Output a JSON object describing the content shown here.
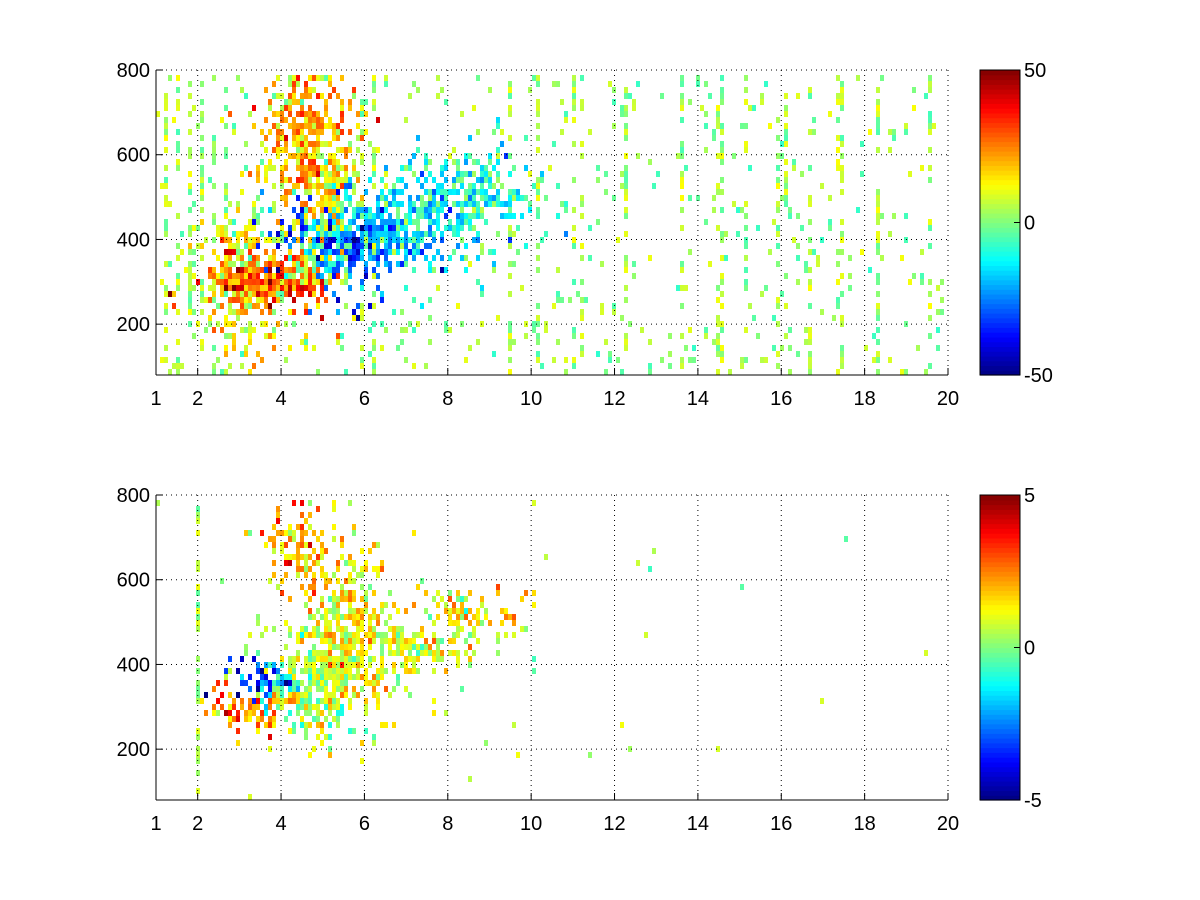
{
  "figure": {
    "background": "#ffffff"
  },
  "colormap": "jet",
  "chart_data": [
    {
      "type": "heatmap",
      "title": "",
      "xlabel": "",
      "ylabel": "",
      "xlim": [
        1,
        20
      ],
      "ylim": [
        80,
        800
      ],
      "x_ticks": [
        1,
        2,
        4,
        6,
        8,
        10,
        12,
        14,
        16,
        18,
        20
      ],
      "y_ticks": [
        200,
        400,
        600,
        800
      ],
      "grid": true,
      "colorbar": {
        "min": -50,
        "max": 50,
        "ticks": [
          -50,
          0,
          50
        ],
        "colormap": "jet"
      },
      "description_of_structure": "",
      "features": [
        {
          "kind": "blob",
          "x": 3.6,
          "y": 300,
          "sx": 0.8,
          "sy": 40,
          "value": 42,
          "density": 0.95
        },
        {
          "kind": "blob",
          "x": 4.4,
          "y": 320,
          "sx": 0.5,
          "sy": 35,
          "value": 30,
          "density": 0.9
        },
        {
          "kind": "blob",
          "x": 5.5,
          "y": 390,
          "sx": 0.8,
          "sy": 60,
          "value": -35,
          "density": 0.9
        },
        {
          "kind": "blob",
          "x": 6.8,
          "y": 440,
          "sx": 1.2,
          "sy": 60,
          "value": -18,
          "density": 0.75
        },
        {
          "kind": "blob",
          "x": 8.6,
          "y": 510,
          "sx": 0.9,
          "sy": 60,
          "value": -12,
          "density": 0.6
        },
        {
          "kind": "blob",
          "x": 4.6,
          "y": 650,
          "sx": 0.6,
          "sy": 110,
          "value": 25,
          "density": 0.75
        },
        {
          "kind": "blob",
          "x": 5.1,
          "y": 520,
          "sx": 0.4,
          "sy": 120,
          "value": 18,
          "density": 0.7
        },
        {
          "kind": "blob",
          "x": 3.0,
          "y": 320,
          "sx": 0.6,
          "sy": 120,
          "value": 12,
          "density": 0.6
        }
      ],
      "vertical_streaks": [
        1.2,
        1.5,
        1.8,
        2.1,
        2.4,
        2.7,
        5.9,
        6.2,
        9.5,
        10.2,
        11.0,
        11.2,
        12.3,
        13.6,
        14.5,
        14.6,
        15.2,
        15.9,
        16.1,
        16.7,
        17.4,
        17.5,
        18.3,
        19.6
      ],
      "noise_density": 0.05
    },
    {
      "type": "heatmap",
      "title": "",
      "xlabel": "",
      "ylabel": "",
      "xlim": [
        1,
        20
      ],
      "ylim": [
        80,
        800
      ],
      "x_ticks": [
        1,
        2,
        4,
        6,
        8,
        10,
        12,
        14,
        16,
        18,
        20
      ],
      "y_ticks": [
        200,
        400,
        600,
        800
      ],
      "grid": true,
      "colorbar": {
        "min": -5,
        "max": 5,
        "ticks": [
          -5,
          0,
          5
        ],
        "colormap": "jet"
      },
      "features": [
        {
          "kind": "blob",
          "x": 3.3,
          "y": 300,
          "sx": 0.6,
          "sy": 35,
          "value": 3,
          "density": 0.9
        },
        {
          "kind": "blob",
          "x": 3.6,
          "y": 360,
          "sx": 0.5,
          "sy": 30,
          "value": -4.5,
          "density": 0.85
        },
        {
          "kind": "blob",
          "x": 4.8,
          "y": 360,
          "sx": 0.8,
          "sy": 70,
          "value": 0.5,
          "density": 0.85
        },
        {
          "kind": "blob",
          "x": 5.6,
          "y": 480,
          "sx": 0.6,
          "sy": 120,
          "value": 1.5,
          "density": 0.8
        },
        {
          "kind": "blob",
          "x": 4.4,
          "y": 690,
          "sx": 0.4,
          "sy": 60,
          "value": 2.5,
          "density": 0.7
        },
        {
          "kind": "blob",
          "x": 7.3,
          "y": 460,
          "sx": 1.0,
          "sy": 55,
          "value": 1.0,
          "density": 0.6
        },
        {
          "kind": "blob",
          "x": 8.8,
          "y": 520,
          "sx": 0.6,
          "sy": 35,
          "value": 2.0,
          "density": 0.4
        }
      ],
      "vertical_streaks": [
        2.05
      ],
      "noise_density": 0.003
    }
  ]
}
